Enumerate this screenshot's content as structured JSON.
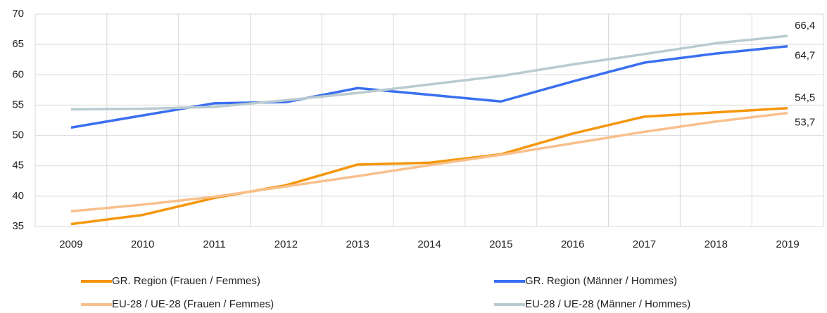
{
  "chart_data": {
    "type": "line",
    "categories": [
      "2009",
      "2010",
      "2011",
      "2012",
      "2013",
      "2014",
      "2015",
      "2016",
      "2017",
      "2018",
      "2019"
    ],
    "series": [
      {
        "name": "GR. Region (Frauen / Femmes)",
        "color": "#f5960a",
        "values": [
          35.4,
          36.9,
          39.7,
          41.8,
          45.2,
          45.5,
          46.9,
          50.3,
          53.1,
          53.8,
          54.5
        ],
        "value_labels": [
          null,
          null,
          null,
          null,
          null,
          null,
          null,
          null,
          null,
          null,
          "54,5"
        ]
      },
      {
        "name": "GR. Region (Männer / Hommes)",
        "color": "#3a6ff0",
        "values": [
          51.3,
          53.3,
          55.3,
          55.5,
          57.8,
          56.7,
          55.6,
          58.9,
          62.0,
          63.5,
          64.7
        ],
        "value_labels": [
          null,
          null,
          null,
          null,
          null,
          null,
          null,
          null,
          null,
          null,
          "64,7"
        ]
      },
      {
        "name": "EU-28 / UE-28 (Frauen / Femmes)",
        "color": "#f7c08c",
        "values": [
          37.5,
          38.6,
          39.9,
          41.6,
          43.3,
          45.1,
          46.8,
          48.7,
          50.6,
          52.3,
          53.7
        ],
        "value_labels": [
          null,
          null,
          null,
          null,
          null,
          null,
          null,
          null,
          null,
          null,
          "53,7"
        ]
      },
      {
        "name": "EU-28 / UE-28 (Männer / Hommes)",
        "color": "#b9cbd0",
        "values": [
          54.3,
          54.4,
          54.7,
          55.8,
          57.0,
          58.4,
          59.8,
          61.7,
          63.4,
          65.2,
          66.4
        ],
        "value_labels": [
          null,
          null,
          null,
          null,
          null,
          null,
          null,
          null,
          null,
          null,
          "66,4"
        ]
      }
    ],
    "ylim": [
      35,
      70
    ],
    "yticks": [
      35,
      40,
      45,
      50,
      55,
      60,
      65,
      70
    ],
    "grid": true
  }
}
